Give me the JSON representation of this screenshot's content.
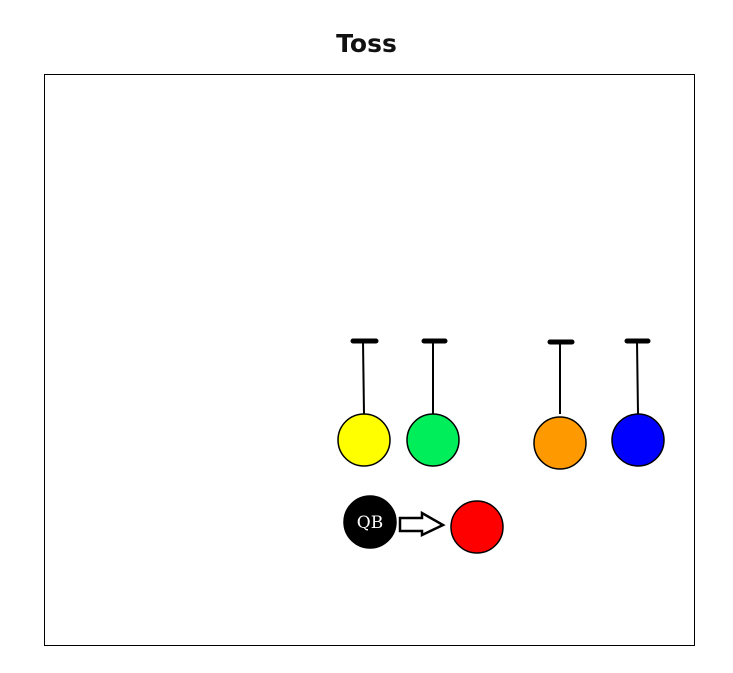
{
  "diagram": {
    "title": "Toss",
    "players": [
      {
        "id": "yellow",
        "color": "#ffff00",
        "route": "block"
      },
      {
        "id": "green",
        "color": "#00ee5a",
        "route": "block"
      },
      {
        "id": "orange",
        "color": "#ff9900",
        "route": "block"
      },
      {
        "id": "blue",
        "color": "#0000ff",
        "route": "block"
      },
      {
        "id": "red",
        "color": "#ff0000",
        "route": "none"
      }
    ],
    "qb": {
      "label": "QB",
      "color": "#000000",
      "text_color": "#ffffff"
    },
    "action": "toss-to-red"
  },
  "colors": {
    "outline": "#000000",
    "arrow_fill": "#ffffff",
    "background": "#ffffff"
  }
}
